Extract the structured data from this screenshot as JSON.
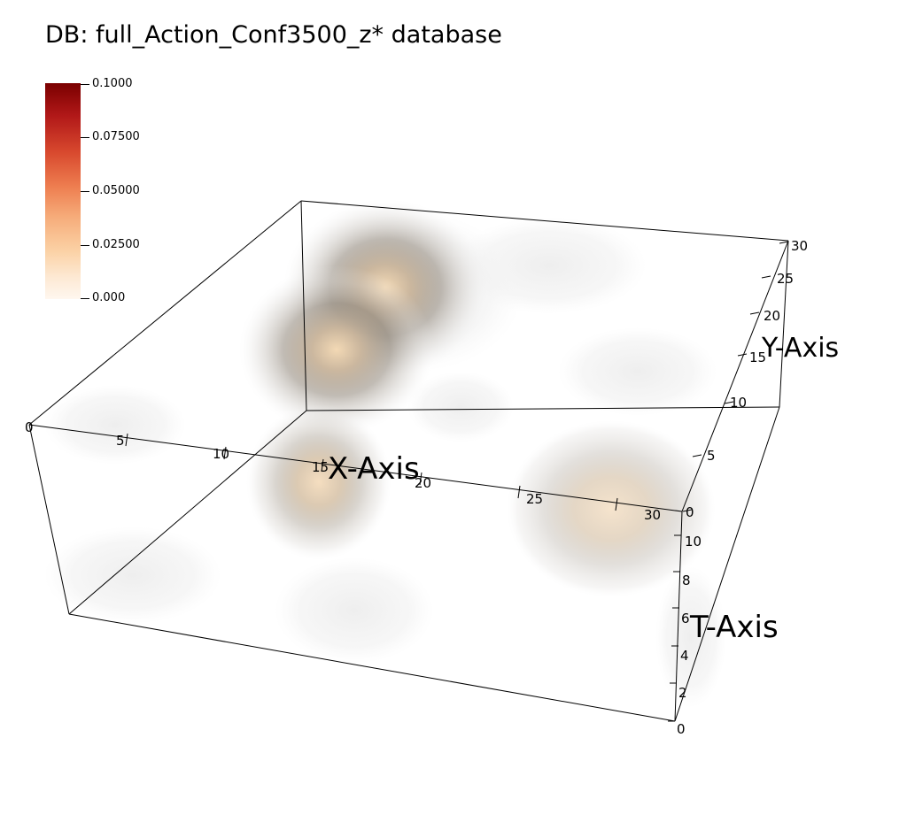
{
  "title": "DB: full_Action_Conf3500_z* database",
  "legend": {
    "labels": [
      "0.1000",
      "0.07500",
      "0.05000",
      "0.02500",
      "0.000"
    ],
    "colors": [
      "#7a0000",
      "#b11818",
      "#d8492e",
      "#ee7e50",
      "#f6ac7a",
      "#fbd2a6",
      "#fde9d4",
      "#fff7ef"
    ]
  },
  "axes": {
    "x": {
      "label": "X-Axis",
      "ticks": [
        "0",
        "5",
        "10",
        "15",
        "20",
        "25",
        "30"
      ]
    },
    "y": {
      "label": "Y-Axis",
      "ticks": [
        "0",
        "5",
        "10",
        "15",
        "20",
        "25",
        "30"
      ]
    },
    "t": {
      "label": "T-Axis",
      "ticks": [
        "0",
        "2",
        "4",
        "6",
        "8",
        "10"
      ]
    }
  }
}
